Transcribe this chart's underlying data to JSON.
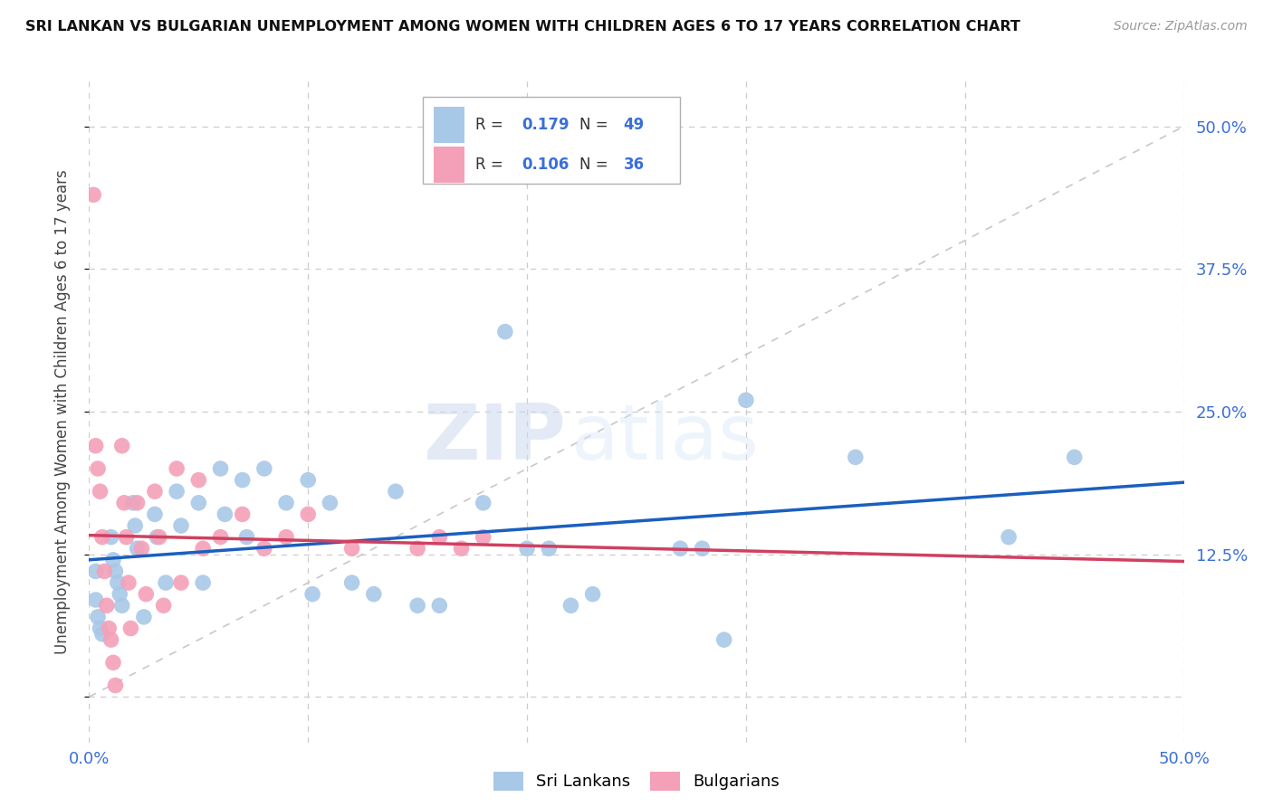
{
  "title": "SRI LANKAN VS BULGARIAN UNEMPLOYMENT AMONG WOMEN WITH CHILDREN AGES 6 TO 17 YEARS CORRELATION CHART",
  "source": "Source: ZipAtlas.com",
  "ylabel": "Unemployment Among Women with Children Ages 6 to 17 years",
  "xmin": 0.0,
  "xmax": 0.5,
  "ymin": -0.04,
  "ymax": 0.54,
  "xticks": [
    0.0,
    0.1,
    0.2,
    0.3,
    0.4,
    0.5
  ],
  "xticklabels": [
    "0.0%",
    "",
    "",
    "",
    "",
    "50.0%"
  ],
  "yticks": [
    0.0,
    0.125,
    0.25,
    0.375,
    0.5
  ],
  "yticklabels": [
    "",
    "12.5%",
    "25.0%",
    "37.5%",
    "50.0%"
  ],
  "sri_lankans_color": "#a8c8e8",
  "bulgarians_color": "#f4a0b8",
  "sri_lankans_R": 0.179,
  "sri_lankans_N": 49,
  "bulgarians_R": 0.106,
  "bulgarians_N": 36,
  "sri_lankans_line_color": "#1a5fbf",
  "bulgarians_line_color": "#d04060",
  "diagonal_color": "#c8c8c8",
  "watermark_part1": "ZIP",
  "watermark_part2": "atlas",
  "sri_lankans_x": [
    0.003,
    0.003,
    0.004,
    0.005,
    0.006,
    0.01,
    0.011,
    0.012,
    0.013,
    0.014,
    0.015,
    0.02,
    0.021,
    0.022,
    0.025,
    0.03,
    0.031,
    0.035,
    0.04,
    0.042,
    0.05,
    0.052,
    0.06,
    0.062,
    0.07,
    0.072,
    0.08,
    0.09,
    0.1,
    0.102,
    0.11,
    0.12,
    0.13,
    0.14,
    0.15,
    0.16,
    0.18,
    0.19,
    0.2,
    0.21,
    0.22,
    0.23,
    0.27,
    0.28,
    0.29,
    0.3,
    0.35,
    0.42,
    0.45
  ],
  "sri_lankans_y": [
    0.11,
    0.085,
    0.07,
    0.06,
    0.055,
    0.14,
    0.12,
    0.11,
    0.1,
    0.09,
    0.08,
    0.17,
    0.15,
    0.13,
    0.07,
    0.16,
    0.14,
    0.1,
    0.18,
    0.15,
    0.17,
    0.1,
    0.2,
    0.16,
    0.19,
    0.14,
    0.2,
    0.17,
    0.19,
    0.09,
    0.17,
    0.1,
    0.09,
    0.18,
    0.08,
    0.08,
    0.17,
    0.32,
    0.13,
    0.13,
    0.08,
    0.09,
    0.13,
    0.13,
    0.05,
    0.26,
    0.21,
    0.14,
    0.21
  ],
  "bulgarians_x": [
    0.002,
    0.003,
    0.004,
    0.005,
    0.006,
    0.007,
    0.008,
    0.009,
    0.01,
    0.011,
    0.012,
    0.015,
    0.016,
    0.017,
    0.018,
    0.019,
    0.022,
    0.024,
    0.026,
    0.03,
    0.032,
    0.034,
    0.04,
    0.042,
    0.05,
    0.052,
    0.06,
    0.07,
    0.08,
    0.09,
    0.1,
    0.12,
    0.15,
    0.16,
    0.17,
    0.18
  ],
  "bulgarians_y": [
    0.44,
    0.22,
    0.2,
    0.18,
    0.14,
    0.11,
    0.08,
    0.06,
    0.05,
    0.03,
    0.01,
    0.22,
    0.17,
    0.14,
    0.1,
    0.06,
    0.17,
    0.13,
    0.09,
    0.18,
    0.14,
    0.08,
    0.2,
    0.1,
    0.19,
    0.13,
    0.14,
    0.16,
    0.13,
    0.14,
    0.16,
    0.13,
    0.13,
    0.14,
    0.13,
    0.14
  ]
}
